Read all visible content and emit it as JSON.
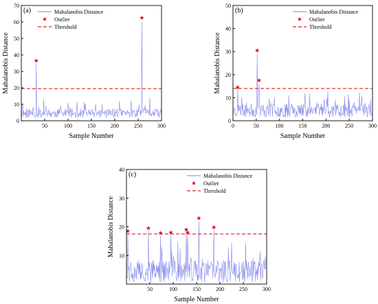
{
  "figure": {
    "series_name": "Mahalanobis Distance",
    "outlier_name": "Outlier",
    "threshold_name": "Threshold",
    "xlabel": "Sample Number",
    "ylabel": "Mahalanobis Distance",
    "colors": {
      "series": "#7b7fe8",
      "outlier": "#e0001b",
      "threshold": "#d62020",
      "axis": "#000000"
    }
  },
  "chart_data": [
    {
      "panel_label": "(a)",
      "type": "line",
      "xlim": [
        0,
        300
      ],
      "ylim": [
        0,
        70
      ],
      "xticks": [
        50,
        100,
        150,
        200,
        250,
        300
      ],
      "yticks": [
        0,
        10,
        20,
        30,
        40,
        50,
        60,
        70
      ],
      "threshold": 19.5,
      "legend_position": "top-left",
      "outliers": [
        {
          "x": 32,
          "y": 36.5
        },
        {
          "x": 258,
          "y": 62.5
        }
      ],
      "series_seed": 11,
      "base": 4.5,
      "spread": 5.5,
      "spikes": [
        {
          "x": 32,
          "y": 35
        },
        {
          "x": 258,
          "y": 60
        },
        {
          "x": 48,
          "y": 13
        },
        {
          "x": 210,
          "y": 12
        },
        {
          "x": 275,
          "y": 14
        },
        {
          "x": 100,
          "y": 11
        }
      ]
    },
    {
      "panel_label": "(b)",
      "type": "line",
      "xlim": [
        0,
        300
      ],
      "ylim": [
        0,
        50
      ],
      "xticks": [
        0,
        50,
        100,
        150,
        200,
        250,
        300
      ],
      "yticks": [
        0,
        10,
        20,
        30,
        40,
        50
      ],
      "threshold": 14,
      "legend_position": "top-right",
      "outliers": [
        {
          "x": 10,
          "y": 14.5
        },
        {
          "x": 52,
          "y": 30.5
        },
        {
          "x": 56,
          "y": 17.5
        }
      ],
      "series_seed": 23,
      "base": 4.5,
      "spread": 6,
      "spikes": [
        {
          "x": 52,
          "y": 29
        },
        {
          "x": 56,
          "y": 16
        },
        {
          "x": 10,
          "y": 13.5
        },
        {
          "x": 155,
          "y": 12
        },
        {
          "x": 272,
          "y": 12.5
        },
        {
          "x": 120,
          "y": 11
        }
      ]
    },
    {
      "panel_label": "(c)",
      "type": "line",
      "xlim": [
        0,
        300
      ],
      "ylim": [
        0,
        40
      ],
      "xticks": [
        50,
        100,
        150,
        200,
        250,
        300
      ],
      "yticks": [
        10,
        20,
        30,
        40
      ],
      "threshold": 17.5,
      "legend_position": "top-right",
      "outliers": [
        {
          "x": 3,
          "y": 18.5
        },
        {
          "x": 47,
          "y": 19.5
        },
        {
          "x": 73,
          "y": 17.8
        },
        {
          "x": 95,
          "y": 18
        },
        {
          "x": 128,
          "y": 19
        },
        {
          "x": 131,
          "y": 18
        },
        {
          "x": 155,
          "y": 23
        },
        {
          "x": 187,
          "y": 19.8
        }
      ],
      "series_seed": 37,
      "base": 4.5,
      "spread": 8,
      "spikes": [
        {
          "x": 3,
          "y": 17.5
        },
        {
          "x": 47,
          "y": 18.5
        },
        {
          "x": 73,
          "y": 17
        },
        {
          "x": 95,
          "y": 17
        },
        {
          "x": 128,
          "y": 18
        },
        {
          "x": 131,
          "y": 17
        },
        {
          "x": 155,
          "y": 22
        },
        {
          "x": 187,
          "y": 19
        },
        {
          "x": 110,
          "y": 15
        },
        {
          "x": 225,
          "y": 14.5
        }
      ]
    }
  ]
}
